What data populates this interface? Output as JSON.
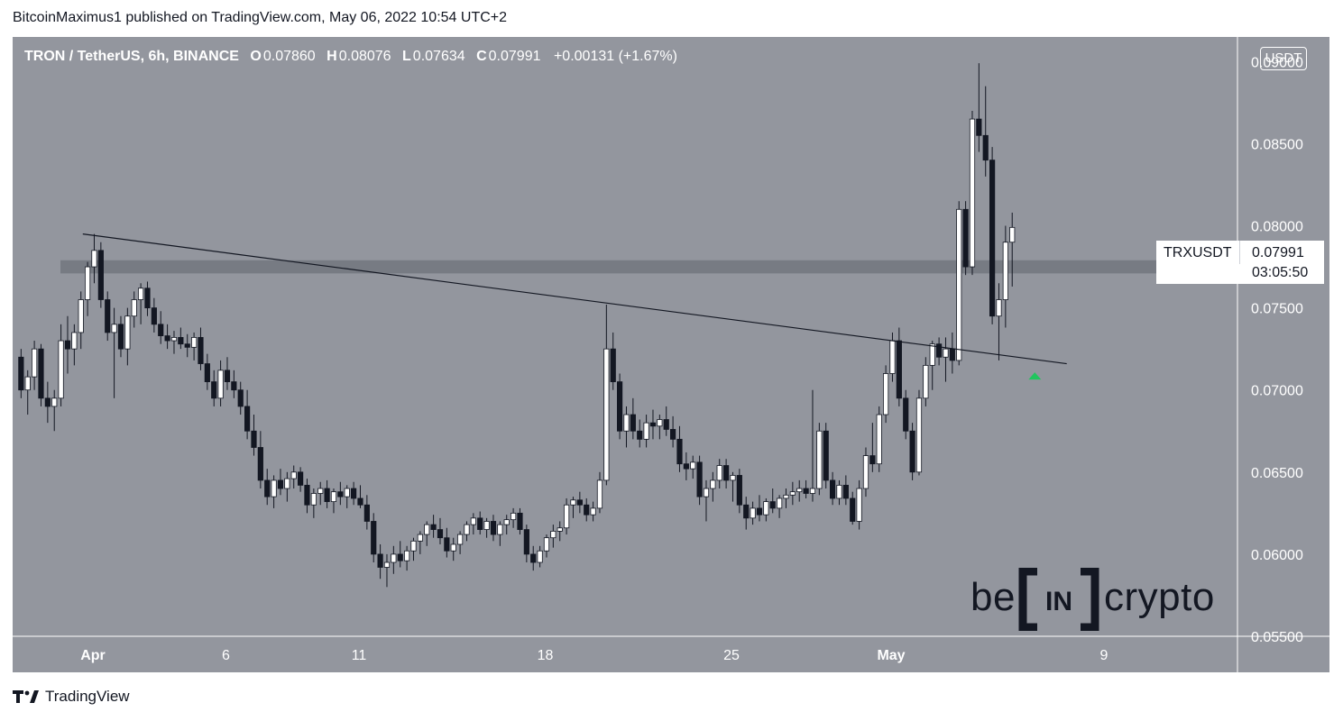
{
  "header": {
    "published_line": "BitcoinMaximus1 published on TradingView.com, May 06, 2022 10:54 UTC+2"
  },
  "legend": {
    "symbol": "TRON / TetherUS, 6h, BINANCE",
    "open_key": "O",
    "open": "0.07860",
    "high_key": "H",
    "high": "0.08076",
    "low_key": "L",
    "low": "0.07634",
    "close_key": "C",
    "close": "0.07991",
    "change": "+0.00131 (+1.67%)"
  },
  "price_axis": {
    "unit_label": "USDT"
  },
  "price_tag": {
    "ticker": "TRXUSDT",
    "last_price": "0.07991",
    "countdown": "03:05:50"
  },
  "footer": {
    "brand": "TradingView"
  },
  "watermark": {
    "left": "be",
    "middle": "IN",
    "right": "crypto"
  },
  "colors": {
    "background": "#93969e",
    "bull_candle": "#ffffff",
    "bear_candle": "#131722",
    "arrow": "#22c55e",
    "zone": "#6e7179"
  },
  "chart_data": {
    "type": "candlestick",
    "title": "TRON / TetherUS, 6h, BINANCE",
    "ylim": [
      0.055,
      0.0915
    ],
    "y_ticks": [
      "0.09000",
      "0.08500",
      "0.08000",
      "0.07500",
      "0.07000",
      "0.06500",
      "0.06000",
      "0.05500"
    ],
    "x_ticks": [
      "Apr",
      "6",
      "11",
      "18",
      "25",
      "May",
      "9"
    ],
    "x_tick_days": [
      1,
      6,
      11,
      18,
      25,
      31,
      39
    ],
    "resistance_zone": [
      0.0771,
      0.0779
    ],
    "trendline": {
      "from": {
        "day": 0.62,
        "price": 0.0795
      },
      "to": {
        "day": 37.6,
        "price": 0.0716
      }
    },
    "arrow": {
      "day": 36.4,
      "price": 0.0708
    },
    "candle_interval_days": 0.25,
    "first_candle_day": -1.7,
    "candles": [
      [
        0.072,
        0.0725,
        0.0695,
        0.07
      ],
      [
        0.07,
        0.0712,
        0.0685,
        0.0708
      ],
      [
        0.0708,
        0.073,
        0.07,
        0.0725
      ],
      [
        0.0725,
        0.0728,
        0.069,
        0.0695
      ],
      [
        0.0695,
        0.0705,
        0.068,
        0.069
      ],
      [
        0.069,
        0.07,
        0.0675,
        0.0695
      ],
      [
        0.0695,
        0.074,
        0.069,
        0.073
      ],
      [
        0.073,
        0.0745,
        0.071,
        0.0725
      ],
      [
        0.0725,
        0.074,
        0.0715,
        0.0735
      ],
      [
        0.0735,
        0.076,
        0.0725,
        0.0755
      ],
      [
        0.0755,
        0.0778,
        0.0745,
        0.0775
      ],
      [
        0.0775,
        0.0795,
        0.0765,
        0.0785
      ],
      [
        0.0785,
        0.079,
        0.075,
        0.0755
      ],
      [
        0.0755,
        0.076,
        0.073,
        0.0735
      ],
      [
        0.0735,
        0.075,
        0.0695,
        0.074
      ],
      [
        0.074,
        0.0745,
        0.072,
        0.0725
      ],
      [
        0.0725,
        0.075,
        0.0715,
        0.0745
      ],
      [
        0.0745,
        0.076,
        0.0738,
        0.0755
      ],
      [
        0.0755,
        0.0765,
        0.074,
        0.0762
      ],
      [
        0.0762,
        0.0766,
        0.0745,
        0.075
      ],
      [
        0.075,
        0.0756,
        0.0735,
        0.074
      ],
      [
        0.074,
        0.0748,
        0.0728,
        0.0733
      ],
      [
        0.0733,
        0.074,
        0.0725,
        0.073
      ],
      [
        0.073,
        0.0736,
        0.0722,
        0.0732
      ],
      [
        0.0732,
        0.0738,
        0.0725,
        0.0728
      ],
      [
        0.0728,
        0.0734,
        0.072,
        0.0726
      ],
      [
        0.0726,
        0.0735,
        0.0718,
        0.0732
      ],
      [
        0.0732,
        0.0738,
        0.0712,
        0.0716
      ],
      [
        0.0716,
        0.0722,
        0.07,
        0.0705
      ],
      [
        0.0705,
        0.0712,
        0.069,
        0.0695
      ],
      [
        0.0695,
        0.0718,
        0.069,
        0.0712
      ],
      [
        0.0712,
        0.072,
        0.07,
        0.0705
      ],
      [
        0.0705,
        0.0712,
        0.0695,
        0.07
      ],
      [
        0.07,
        0.0705,
        0.0685,
        0.069
      ],
      [
        0.069,
        0.07,
        0.067,
        0.0675
      ],
      [
        0.0675,
        0.0685,
        0.066,
        0.0665
      ],
      [
        0.0665,
        0.0675,
        0.064,
        0.0645
      ],
      [
        0.0645,
        0.0652,
        0.063,
        0.0635
      ],
      [
        0.0635,
        0.0648,
        0.0628,
        0.0645
      ],
      [
        0.0645,
        0.0652,
        0.0636,
        0.064
      ],
      [
        0.064,
        0.065,
        0.0632,
        0.0646
      ],
      [
        0.0646,
        0.0654,
        0.064,
        0.065
      ],
      [
        0.065,
        0.0653,
        0.0638,
        0.0642
      ],
      [
        0.0642,
        0.0646,
        0.0625,
        0.063
      ],
      [
        0.063,
        0.064,
        0.0622,
        0.0637
      ],
      [
        0.0637,
        0.0644,
        0.063,
        0.064
      ],
      [
        0.064,
        0.0645,
        0.0628,
        0.0632
      ],
      [
        0.0632,
        0.064,
        0.0625,
        0.0638
      ],
      [
        0.0638,
        0.0644,
        0.063,
        0.0635
      ],
      [
        0.0635,
        0.0642,
        0.0628,
        0.064
      ],
      [
        0.064,
        0.0644,
        0.063,
        0.0634
      ],
      [
        0.0634,
        0.0642,
        0.0628,
        0.063
      ],
      [
        0.063,
        0.0636,
        0.0615,
        0.062
      ],
      [
        0.062,
        0.0625,
        0.0595,
        0.06
      ],
      [
        0.06,
        0.0606,
        0.0585,
        0.0592
      ],
      [
        0.0592,
        0.06,
        0.058,
        0.0595
      ],
      [
        0.0595,
        0.0605,
        0.0588,
        0.06
      ],
      [
        0.06,
        0.0608,
        0.0592,
        0.0596
      ],
      [
        0.0596,
        0.0605,
        0.059,
        0.0602
      ],
      [
        0.0602,
        0.061,
        0.0596,
        0.0608
      ],
      [
        0.0608,
        0.0614,
        0.06,
        0.0612
      ],
      [
        0.0612,
        0.062,
        0.0605,
        0.0618
      ],
      [
        0.0618,
        0.0624,
        0.061,
        0.0615
      ],
      [
        0.0615,
        0.0622,
        0.0606,
        0.061
      ],
      [
        0.061,
        0.0616,
        0.0598,
        0.0602
      ],
      [
        0.0602,
        0.061,
        0.0596,
        0.0606
      ],
      [
        0.0606,
        0.0614,
        0.06,
        0.0612
      ],
      [
        0.0612,
        0.062,
        0.0608,
        0.0618
      ],
      [
        0.0618,
        0.0625,
        0.0612,
        0.0622
      ],
      [
        0.0622,
        0.0626,
        0.0612,
        0.0615
      ],
      [
        0.0615,
        0.0622,
        0.061,
        0.062
      ],
      [
        0.062,
        0.0624,
        0.0608,
        0.0612
      ],
      [
        0.0612,
        0.062,
        0.0605,
        0.0618
      ],
      [
        0.0618,
        0.0624,
        0.0612,
        0.0621
      ],
      [
        0.0621,
        0.0628,
        0.0616,
        0.0625
      ],
      [
        0.0625,
        0.0628,
        0.0612,
        0.0615
      ],
      [
        0.0615,
        0.0618,
        0.0595,
        0.06
      ],
      [
        0.06,
        0.0605,
        0.059,
        0.0595
      ],
      [
        0.0595,
        0.0605,
        0.0592,
        0.0602
      ],
      [
        0.0602,
        0.0612,
        0.0598,
        0.061
      ],
      [
        0.061,
        0.0618,
        0.0604,
        0.0614
      ],
      [
        0.0614,
        0.062,
        0.0608,
        0.0616
      ],
      [
        0.0616,
        0.0634,
        0.0612,
        0.063
      ],
      [
        0.063,
        0.0635,
        0.0622,
        0.0633
      ],
      [
        0.0633,
        0.0638,
        0.0625,
        0.063
      ],
      [
        0.063,
        0.0634,
        0.062,
        0.0624
      ],
      [
        0.0624,
        0.0632,
        0.062,
        0.0628
      ],
      [
        0.0628,
        0.065,
        0.0625,
        0.0645
      ],
      [
        0.0645,
        0.0752,
        0.0642,
        0.0725
      ],
      [
        0.0725,
        0.0735,
        0.07,
        0.0705
      ],
      [
        0.0705,
        0.071,
        0.067,
        0.0675
      ],
      [
        0.0675,
        0.069,
        0.0665,
        0.0685
      ],
      [
        0.0685,
        0.0695,
        0.067,
        0.0675
      ],
      [
        0.0675,
        0.0682,
        0.0665,
        0.067
      ],
      [
        0.067,
        0.0685,
        0.0665,
        0.068
      ],
      [
        0.068,
        0.0688,
        0.067,
        0.0678
      ],
      [
        0.0678,
        0.0685,
        0.067,
        0.0682
      ],
      [
        0.0682,
        0.069,
        0.0672,
        0.0676
      ],
      [
        0.0676,
        0.0684,
        0.0665,
        0.067
      ],
      [
        0.067,
        0.0678,
        0.065,
        0.0655
      ],
      [
        0.0655,
        0.0662,
        0.0645,
        0.0652
      ],
      [
        0.0652,
        0.066,
        0.0646,
        0.0656
      ],
      [
        0.0656,
        0.066,
        0.063,
        0.0635
      ],
      [
        0.0635,
        0.0645,
        0.062,
        0.064
      ],
      [
        0.064,
        0.065,
        0.0632,
        0.0645
      ],
      [
        0.0645,
        0.0658,
        0.064,
        0.0654
      ],
      [
        0.0654,
        0.0658,
        0.064,
        0.0645
      ],
      [
        0.0645,
        0.065,
        0.0632,
        0.0648
      ],
      [
        0.0648,
        0.0652,
        0.0625,
        0.063
      ],
      [
        0.063,
        0.0635,
        0.0615,
        0.0622
      ],
      [
        0.0622,
        0.0632,
        0.0618,
        0.0628
      ],
      [
        0.0628,
        0.0636,
        0.062,
        0.0624
      ],
      [
        0.0624,
        0.0634,
        0.062,
        0.0632
      ],
      [
        0.0632,
        0.064,
        0.0625,
        0.0628
      ],
      [
        0.0628,
        0.0636,
        0.0622,
        0.0634
      ],
      [
        0.0634,
        0.064,
        0.0628,
        0.0636
      ],
      [
        0.0636,
        0.0644,
        0.063,
        0.0638
      ],
      [
        0.0638,
        0.0645,
        0.0632,
        0.064
      ],
      [
        0.064,
        0.0645,
        0.0634,
        0.0637
      ],
      [
        0.0637,
        0.07,
        0.0632,
        0.064
      ],
      [
        0.064,
        0.068,
        0.0636,
        0.0675
      ],
      [
        0.0675,
        0.068,
        0.064,
        0.0645
      ],
      [
        0.0645,
        0.065,
        0.063,
        0.0634
      ],
      [
        0.0634,
        0.0645,
        0.063,
        0.0642
      ],
      [
        0.0642,
        0.0648,
        0.063,
        0.0634
      ],
      [
        0.0634,
        0.0638,
        0.0618,
        0.062
      ],
      [
        0.062,
        0.0645,
        0.0615,
        0.064
      ],
      [
        0.064,
        0.0665,
        0.0635,
        0.066
      ],
      [
        0.066,
        0.068,
        0.065,
        0.0655
      ],
      [
        0.0655,
        0.069,
        0.065,
        0.0685
      ],
      [
        0.0685,
        0.0715,
        0.068,
        0.071
      ],
      [
        0.071,
        0.0735,
        0.0705,
        0.073
      ],
      [
        0.073,
        0.0738,
        0.069,
        0.0695
      ],
      [
        0.0695,
        0.07,
        0.067,
        0.0675
      ],
      [
        0.0675,
        0.068,
        0.0645,
        0.065
      ],
      [
        0.065,
        0.07,
        0.0648,
        0.0695
      ],
      [
        0.0695,
        0.072,
        0.069,
        0.0715
      ],
      [
        0.0715,
        0.073,
        0.07,
        0.0728
      ],
      [
        0.0728,
        0.0732,
        0.0715,
        0.072
      ],
      [
        0.072,
        0.0732,
        0.0705,
        0.0725
      ],
      [
        0.0725,
        0.0735,
        0.071,
        0.0718
      ],
      [
        0.0718,
        0.0815,
        0.0715,
        0.081
      ],
      [
        0.081,
        0.0815,
        0.077,
        0.0775
      ],
      [
        0.0775,
        0.087,
        0.077,
        0.0865
      ],
      [
        0.0865,
        0.0899,
        0.0845,
        0.0855
      ],
      [
        0.0855,
        0.0885,
        0.083,
        0.084
      ],
      [
        0.084,
        0.0848,
        0.074,
        0.0745
      ],
      [
        0.0745,
        0.0765,
        0.0718,
        0.0755
      ],
      [
        0.0755,
        0.08,
        0.0738,
        0.079
      ],
      [
        0.079,
        0.0808,
        0.0763,
        0.0799
      ]
    ]
  }
}
